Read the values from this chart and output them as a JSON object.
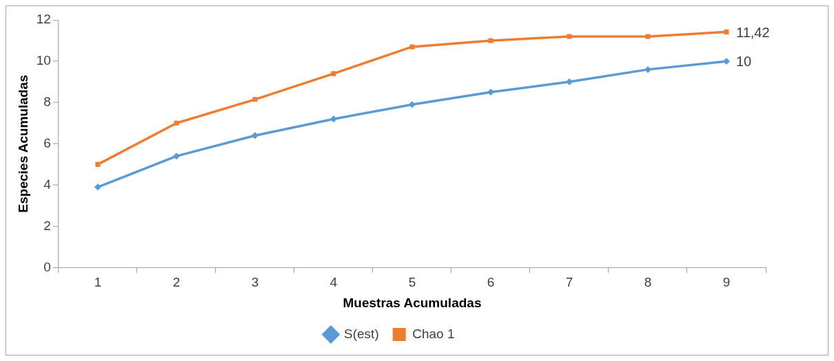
{
  "chart_data": {
    "type": "line",
    "xlabel": "Muestras Acumuladas",
    "ylabel": "Especies Acumuladas",
    "categories": [
      "1",
      "2",
      "3",
      "4",
      "5",
      "6",
      "7",
      "8",
      "9"
    ],
    "series": [
      {
        "name": "S(est)",
        "color": "#5b9bd5",
        "marker": "diamond",
        "values": [
          3.9,
          5.4,
          6.4,
          7.2,
          7.9,
          8.5,
          9.0,
          9.6,
          10
        ],
        "value_labels": [
          null,
          null,
          null,
          null,
          null,
          null,
          null,
          null,
          "10"
        ]
      },
      {
        "name": "Chao 1",
        "color": "#ed7d31",
        "marker": "square",
        "values": [
          5.0,
          7.0,
          8.15,
          9.4,
          10.7,
          11.0,
          11.2,
          11.2,
          11.42
        ],
        "value_labels": [
          null,
          null,
          null,
          null,
          null,
          null,
          null,
          null,
          "11,42"
        ]
      }
    ],
    "ylim": [
      0,
      12
    ],
    "yticks": [
      0,
      2,
      4,
      6,
      8,
      10,
      12
    ],
    "grid": false,
    "legend": "bottom"
  }
}
